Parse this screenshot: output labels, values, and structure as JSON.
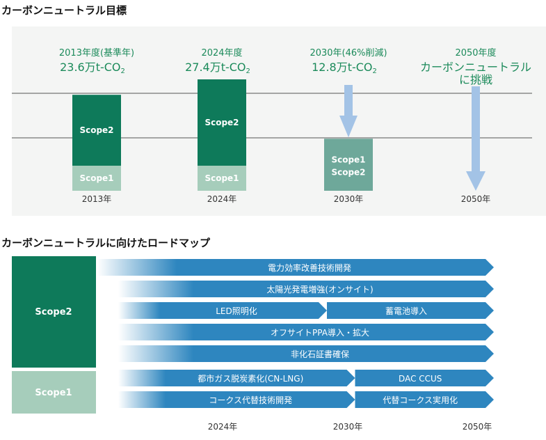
{
  "sections": {
    "goal_title": "カーボンニュートラル目標",
    "roadmap_title": "カーボンニュートラルに向けたロードマップ"
  },
  "colors": {
    "scope2": "#0e7a5a",
    "scope1": "#a6cdbb",
    "target_2030": "#6ea89a",
    "arrow": "#a3c3e6",
    "panel_bg": "#f4f5f4",
    "heading_green": "#1b8a5a",
    "roadmap_blue": "#2e86bf"
  },
  "chart_data": [
    {
      "type": "bar",
      "categories": [
        "2013年",
        "2024年",
        "2030年",
        "2050年"
      ],
      "headings": [
        {
          "line1": "2013年度(基準年)",
          "line2": "23.6万t-CO",
          "sub": "2"
        },
        {
          "line1": "2024年度",
          "line2": "27.4万t-CO",
          "sub": "2"
        },
        {
          "line1": "2030年(46%削減)",
          "line2": "12.8万t-CO",
          "sub": "2"
        },
        {
          "line1": "2050年度",
          "line2": "カーボンニュートラル",
          "line3": "に挑戦"
        }
      ],
      "series": [
        {
          "name": "Scope1",
          "values": [
            23.6,
            27.4,
            12.8,
            0
          ]
        },
        {
          "name": "Scope2",
          "values": [
            23.6,
            27.4,
            12.8,
            0
          ]
        }
      ],
      "stack_label": "Scope1\nScope2"
    },
    {
      "type": "table",
      "rows": [
        {
          "label": "Scope2"
        },
        {
          "label": "Scope1"
        }
      ],
      "bars": [
        {
          "text": "電力効率改善技術開発",
          "start": 2018,
          "end": 2050
        },
        {
          "text": "太陽光発電増強(オンサイト)",
          "start": 2018,
          "end": 2050
        },
        {
          "text": "LED照明化",
          "start": 2018,
          "end": 2029
        },
        {
          "text": "蓄電池導入",
          "start": 2029,
          "end": 2050
        },
        {
          "text": "オフサイトPPA導入・拡大",
          "start": 2018,
          "end": 2050
        },
        {
          "text": "非化石証書確保",
          "start": 2018,
          "end": 2050
        },
        {
          "text": "都市ガス脱炭素化(CN-LNG)",
          "start": 2018,
          "end": 2031
        },
        {
          "text": "DAC CCUS",
          "start": 2031,
          "end": 2050
        },
        {
          "text": "コークス代替技術開発",
          "start": 2018,
          "end": 2031
        },
        {
          "text": "代替コークス実用化",
          "start": 2031,
          "end": 2050
        }
      ],
      "x_ticks": [
        "2024年",
        "2030年",
        "2050年"
      ]
    }
  ]
}
